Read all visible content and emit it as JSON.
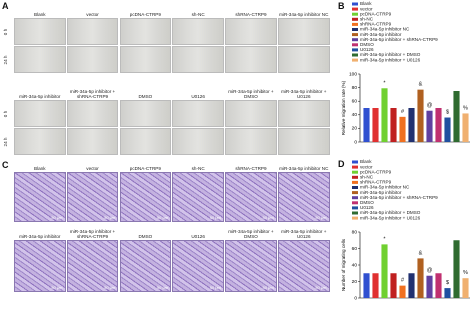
{
  "panel_a": {
    "label": "A",
    "row_labels": [
      "0 h",
      "24 h"
    ],
    "top_columns": [
      "Blank",
      "vector",
      "pcDNA-CTRP9",
      "sh-NC",
      "shRNA-CTRP9",
      "miR-34a-5p inhibitor NC"
    ],
    "bottom_columns": [
      "miR-34a-5p inhibitor",
      "miR-34a-5p inhibitor + shRNA-CTRP9",
      "DMSO",
      "U0126",
      "miR-34a-5p inhibitor + DMSO",
      "miR-34a-5p inhibitor + U0126"
    ]
  },
  "panel_c": {
    "label": "C",
    "scale_bar": "50 μm",
    "top_columns": [
      "Blank",
      "vector",
      "pcDNA-CTRP9",
      "sh-NC",
      "shRNA-CTRP9",
      "miR-34a-5p inhibitor NC"
    ],
    "bottom_columns": [
      "miR-34a-5p inhibitor",
      "miR-34a-5p inhibitor + shRNA-CTRP9",
      "DMSO",
      "U0126",
      "miR-34a-5p inhibitor + DMSO",
      "miR-34a-5p inhibitor + U0126"
    ]
  },
  "chart_data": [
    {
      "type": "bar",
      "label": "B",
      "ylabel": "Relative migration rate (%)",
      "categories": [
        "Blank",
        "vector",
        "pcDNA-CTRP9",
        "sh-NC",
        "shRNA-CTRP9",
        "miR-34a-5p inhibitor NC",
        "miR-34a-5p inhibitor",
        "miR-34a-5p inhibitor + shRNA-CTRP9",
        "DMSO",
        "U0126",
        "miR-34a-5p inhibitor + DMSO",
        "miR-34a-5p inhibitor + U0126"
      ],
      "colors": [
        "#3050d0",
        "#e03030",
        "#70d030",
        "#c02020",
        "#f07020",
        "#203070",
        "#b06020",
        "#6040a0",
        "#c03070",
        "#2050a0",
        "#2f6b30",
        "#f0b070"
      ],
      "values": [
        50,
        50,
        79,
        50,
        37,
        50,
        77,
        46,
        50,
        36,
        75,
        42
      ],
      "bar_labels": [
        null,
        null,
        "*",
        null,
        "#",
        null,
        "&",
        "@",
        null,
        "$",
        null,
        "%"
      ],
      "ylim": [
        0,
        100
      ],
      "yticks": [
        0,
        20,
        40,
        60,
        80,
        100
      ]
    },
    {
      "type": "bar",
      "label": "D",
      "ylabel": "Number of migrating cells",
      "categories": [
        "Blank",
        "vector",
        "pcDNA-CTRP9",
        "sh-NC",
        "shRNA-CTRP9",
        "miR-34a-5p inhibitor NC",
        "miR-34a-5p inhibitor",
        "miR-34a-5p inhibitor + shRNA-CTRP9",
        "DMSO",
        "U0126",
        "miR-34a-5p inhibitor + DMSO",
        "miR-34a-5p inhibitor + U0126"
      ],
      "colors": [
        "#3050d0",
        "#e03030",
        "#70d030",
        "#c02020",
        "#f07020",
        "#203070",
        "#b06020",
        "#6040a0",
        "#c03070",
        "#2050a0",
        "#2f6b30",
        "#f0b070"
      ],
      "values": [
        30,
        30,
        65,
        30,
        15,
        30,
        48,
        27,
        30,
        12,
        70,
        24
      ],
      "bar_labels": [
        null,
        null,
        "*",
        null,
        "#",
        null,
        "&",
        "@",
        null,
        "$",
        null,
        "%"
      ],
      "ylim": [
        0,
        80
      ],
      "yticks": [
        0,
        20,
        40,
        60,
        80
      ]
    }
  ]
}
